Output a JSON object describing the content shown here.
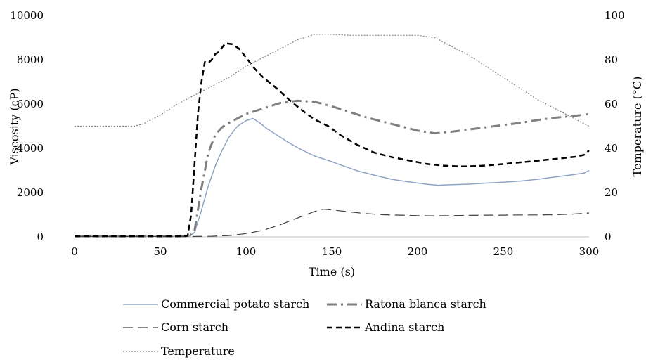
{
  "chart_data": {
    "type": "line",
    "xlabel": "Time (s)",
    "ylabel": "Viscosity (cP)",
    "y2label": "Temperature (°C)",
    "xlim": [
      0,
      300
    ],
    "ylim": [
      0,
      10000
    ],
    "y2lim": [
      0,
      100
    ],
    "x_ticks": [
      0,
      50,
      100,
      150,
      200,
      250,
      300
    ],
    "y_ticks": [
      0,
      2000,
      4000,
      6000,
      8000,
      10000
    ],
    "y2_ticks": [
      0,
      20,
      40,
      60,
      80,
      100
    ],
    "grid": false,
    "legend_position": "bottom",
    "series": [
      {
        "name": "Commercial potato starch",
        "axis": "left",
        "color": "#8ea3c4",
        "dash": "solid",
        "points": [
          [
            0,
            30
          ],
          [
            30,
            30
          ],
          [
            60,
            30
          ],
          [
            67,
            30
          ],
          [
            70,
            200
          ],
          [
            74,
            1200
          ],
          [
            78,
            2300
          ],
          [
            82,
            3200
          ],
          [
            86,
            3900
          ],
          [
            90,
            4500
          ],
          [
            95,
            5000
          ],
          [
            100,
            5250
          ],
          [
            104,
            5350
          ],
          [
            108,
            5150
          ],
          [
            112,
            4900
          ],
          [
            118,
            4600
          ],
          [
            125,
            4250
          ],
          [
            132,
            3950
          ],
          [
            140,
            3650
          ],
          [
            148,
            3450
          ],
          [
            155,
            3250
          ],
          [
            165,
            2980
          ],
          [
            175,
            2780
          ],
          [
            185,
            2600
          ],
          [
            195,
            2480
          ],
          [
            205,
            2380
          ],
          [
            212,
            2330
          ],
          [
            220,
            2360
          ],
          [
            230,
            2380
          ],
          [
            240,
            2430
          ],
          [
            250,
            2470
          ],
          [
            260,
            2520
          ],
          [
            270,
            2600
          ],
          [
            280,
            2700
          ],
          [
            290,
            2800
          ],
          [
            297,
            2880
          ],
          [
            300,
            3000
          ]
        ]
      },
      {
        "name": "Ratona blanca starch",
        "axis": "left",
        "color": "#7f7f7f",
        "dash": "dashdot",
        "points": [
          [
            0,
            30
          ],
          [
            30,
            30
          ],
          [
            60,
            30
          ],
          [
            67,
            30
          ],
          [
            70,
            300
          ],
          [
            74,
            2200
          ],
          [
            78,
            3800
          ],
          [
            82,
            4600
          ],
          [
            86,
            4950
          ],
          [
            90,
            5150
          ],
          [
            95,
            5350
          ],
          [
            100,
            5550
          ],
          [
            110,
            5800
          ],
          [
            120,
            6050
          ],
          [
            130,
            6150
          ],
          [
            140,
            6100
          ],
          [
            150,
            5900
          ],
          [
            160,
            5650
          ],
          [
            170,
            5400
          ],
          [
            180,
            5200
          ],
          [
            190,
            5000
          ],
          [
            200,
            4800
          ],
          [
            210,
            4680
          ],
          [
            220,
            4750
          ],
          [
            230,
            4850
          ],
          [
            240,
            4950
          ],
          [
            250,
            5050
          ],
          [
            260,
            5150
          ],
          [
            270,
            5280
          ],
          [
            280,
            5380
          ],
          [
            290,
            5450
          ],
          [
            300,
            5550
          ]
        ]
      },
      {
        "name": "Corn starch",
        "axis": "left",
        "color": "#404040",
        "dash": "longdash",
        "points": [
          [
            0,
            20
          ],
          [
            30,
            20
          ],
          [
            60,
            20
          ],
          [
            70,
            20
          ],
          [
            80,
            30
          ],
          [
            90,
            60
          ],
          [
            100,
            150
          ],
          [
            110,
            300
          ],
          [
            120,
            550
          ],
          [
            130,
            850
          ],
          [
            140,
            1150
          ],
          [
            145,
            1250
          ],
          [
            150,
            1220
          ],
          [
            160,
            1130
          ],
          [
            170,
            1050
          ],
          [
            180,
            1000
          ],
          [
            190,
            980
          ],
          [
            200,
            960
          ],
          [
            210,
            950
          ],
          [
            220,
            960
          ],
          [
            230,
            970
          ],
          [
            240,
            980
          ],
          [
            250,
            980
          ],
          [
            260,
            990
          ],
          [
            270,
            990
          ],
          [
            280,
            1000
          ],
          [
            290,
            1030
          ],
          [
            300,
            1080
          ]
        ]
      },
      {
        "name": "Andina starch",
        "axis": "left",
        "color": "#000000",
        "dash": "dash",
        "points": [
          [
            0,
            30
          ],
          [
            30,
            30
          ],
          [
            60,
            30
          ],
          [
            66,
            50
          ],
          [
            68,
            1000
          ],
          [
            70,
            3300
          ],
          [
            72,
            5600
          ],
          [
            74,
            7000
          ],
          [
            76,
            7900
          ],
          [
            78,
            7850
          ],
          [
            80,
            8000
          ],
          [
            82,
            8250
          ],
          [
            84,
            8350
          ],
          [
            86,
            8550
          ],
          [
            88,
            8750
          ],
          [
            92,
            8700
          ],
          [
            96,
            8500
          ],
          [
            100,
            8100
          ],
          [
            105,
            7600
          ],
          [
            110,
            7200
          ],
          [
            118,
            6700
          ],
          [
            125,
            6200
          ],
          [
            133,
            5700
          ],
          [
            140,
            5300
          ],
          [
            148,
            5000
          ],
          [
            155,
            4600
          ],
          [
            165,
            4150
          ],
          [
            175,
            3800
          ],
          [
            185,
            3600
          ],
          [
            195,
            3450
          ],
          [
            205,
            3300
          ],
          [
            215,
            3220
          ],
          [
            225,
            3180
          ],
          [
            235,
            3200
          ],
          [
            245,
            3250
          ],
          [
            255,
            3330
          ],
          [
            265,
            3400
          ],
          [
            275,
            3480
          ],
          [
            285,
            3560
          ],
          [
            292,
            3620
          ],
          [
            297,
            3700
          ],
          [
            300,
            3900
          ]
        ]
      },
      {
        "name": "Temperature",
        "axis": "right",
        "color": "#808080",
        "dash": "dot",
        "points": [
          [
            0,
            50
          ],
          [
            35,
            50
          ],
          [
            40,
            51
          ],
          [
            50,
            55
          ],
          [
            60,
            60
          ],
          [
            70,
            64
          ],
          [
            80,
            68
          ],
          [
            90,
            72
          ],
          [
            100,
            77
          ],
          [
            110,
            81
          ],
          [
            120,
            85
          ],
          [
            130,
            89
          ],
          [
            140,
            91.5
          ],
          [
            150,
            91.5
          ],
          [
            160,
            91
          ],
          [
            170,
            91
          ],
          [
            180,
            91
          ],
          [
            190,
            91
          ],
          [
            200,
            91
          ],
          [
            210,
            90
          ],
          [
            220,
            86
          ],
          [
            230,
            82
          ],
          [
            240,
            77
          ],
          [
            250,
            72
          ],
          [
            260,
            67
          ],
          [
            270,
            62
          ],
          [
            280,
            58
          ],
          [
            290,
            54
          ],
          [
            300,
            50
          ]
        ]
      }
    ]
  }
}
